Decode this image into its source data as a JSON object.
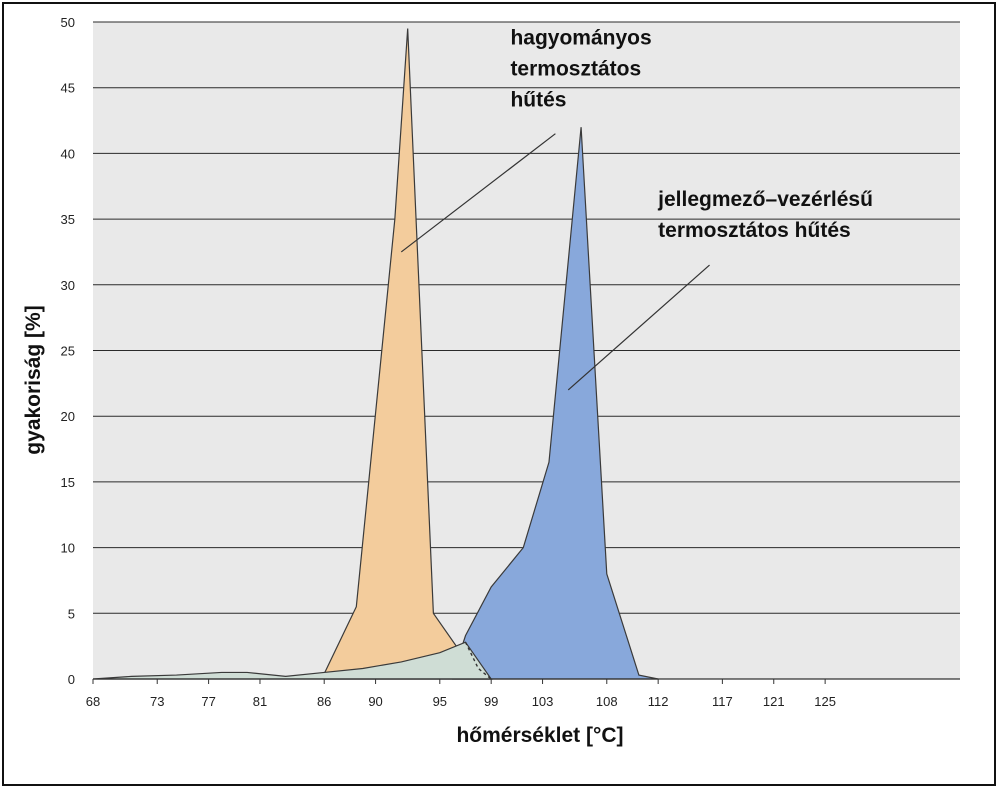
{
  "chart_data": {
    "type": "area",
    "xlabel": "hőmérséklet [°C]",
    "ylabel": "gyakoriság [%]",
    "x_ticks": [
      68,
      73,
      77,
      81,
      86,
      90,
      95,
      99,
      103,
      108,
      112,
      117,
      121,
      125
    ],
    "y_ticks": [
      0,
      5,
      10,
      15,
      20,
      25,
      30,
      35,
      40,
      45,
      50
    ],
    "xlim": [
      68,
      135.5
    ],
    "ylim": [
      0,
      50
    ],
    "grid": "horizontal",
    "series": [
      {
        "color": "#f3cc9c",
        "x": [
          86,
          88.5,
          91.5,
          92.5,
          94.5,
          97,
          99
        ],
        "y": [
          0.4,
          5.5,
          35,
          49.5,
          5,
          1.5,
          0
        ]
      },
      {
        "color": "#88a8db",
        "x": [
          96,
          97,
          99,
          101.5,
          103.5,
          106,
          108,
          110.5,
          112
        ],
        "y": [
          0.3,
          3.3,
          7,
          10,
          16.5,
          42,
          8,
          0.3,
          0
        ]
      },
      {
        "color": "#cfddd5",
        "x": [
          68,
          71,
          74.5,
          78,
          80,
          83,
          86,
          89,
          92,
          95,
          97,
          99
        ],
        "y": [
          0,
          0.2,
          0.3,
          0.5,
          0.5,
          0.2,
          0.5,
          0.8,
          1.3,
          2,
          2.8,
          0
        ]
      }
    ],
    "annotations": [
      {
        "lines": [
          "hagyományos",
          "termosztátos",
          "hűtés"
        ],
        "text_x": 100.5,
        "text_y": 48.3,
        "arrow_from": [
          104,
          41.5
        ],
        "arrow_to": [
          92,
          32.5
        ]
      },
      {
        "lines": [
          "jellegmező–vezérlésű",
          "termosztátos hűtés"
        ],
        "text_x": 112,
        "text_y": 36,
        "arrow_from": [
          116,
          31.5
        ],
        "arrow_to": [
          105,
          22
        ]
      }
    ]
  }
}
